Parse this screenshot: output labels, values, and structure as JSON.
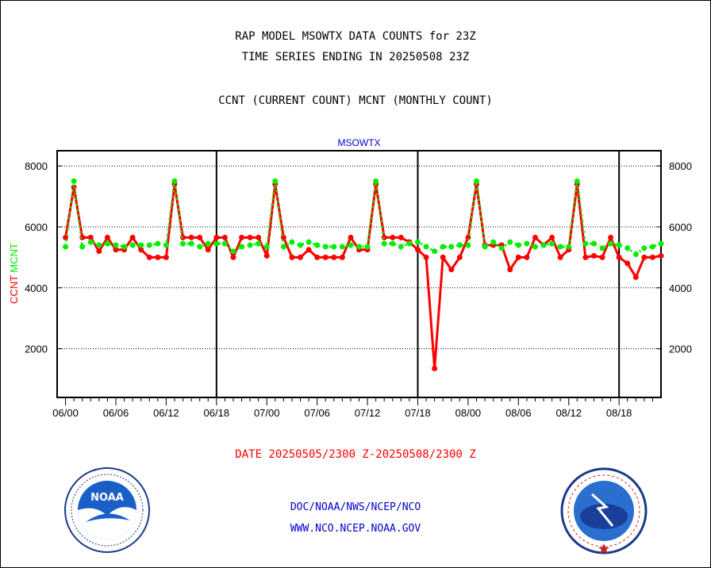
{
  "header": {
    "title1": "RAP MODEL MSOWTX DATA COUNTS for 23Z",
    "title2": "TIME SERIES ENDING IN 20250508 23Z",
    "title3": "CCNT (CURRENT COUNT) MCNT (MONTHLY COUNT)"
  },
  "footer": {
    "date_range": "DATE 20250505/2300 Z-20250508/2300 Z",
    "org_path": "DOC/NOAA/NWS/NCEP/NCO",
    "website": "WWW.NCO.NCEP.NOAA.GOV"
  },
  "logos": {
    "left": {
      "icon": "noaa-logo",
      "text": "NOAA"
    },
    "right": {
      "icon": "national-weather-service-logo"
    }
  },
  "colors": {
    "ccnt": "#ff0000",
    "mcnt": "#00ee00",
    "axis": "#000000",
    "station": "#0000cc"
  },
  "chart_data": {
    "type": "line",
    "title": "MSOWTX",
    "ylabel_ccnt": "CCNT",
    "ylabel_mcnt": "MCNT",
    "xlim": [
      -1,
      71
    ],
    "ylim": [
      400,
      8500
    ],
    "yticks": [
      2000,
      4000,
      6000,
      8000
    ],
    "ytick_labels": [
      "2000",
      "4000",
      "6000",
      "8000"
    ],
    "xticks": [
      0,
      6,
      12,
      18,
      24,
      30,
      36,
      42,
      48,
      54,
      60,
      66
    ],
    "xtick_labels": [
      "06/00",
      "06/06",
      "06/12",
      "06/18",
      "07/00",
      "07/06",
      "07/12",
      "07/18",
      "08/00",
      "08/06",
      "08/12",
      "08/18"
    ],
    "day_dividers": [
      18,
      42,
      66
    ],
    "grid": "horizontal dotted",
    "series": [
      {
        "name": "CCNT",
        "values": [
          5650,
          7300,
          5650,
          5650,
          5200,
          5650,
          5250,
          5250,
          5650,
          5250,
          5000,
          5000,
          5000,
          7400,
          5650,
          5650,
          5650,
          5250,
          5650,
          5650,
          5000,
          5650,
          5650,
          5650,
          5050,
          7400,
          5650,
          5000,
          5000,
          5250,
          5000,
          5000,
          5000,
          5000,
          5650,
          5250,
          5250,
          7400,
          5650,
          5650,
          5650,
          5500,
          5250,
          5000,
          1350,
          5000,
          4600,
          5000,
          5650,
          7400,
          5400,
          5400,
          5400,
          4600,
          5000,
          5000,
          5650,
          5400,
          5650,
          5000,
          5250,
          7400,
          5000,
          5050,
          5000,
          5650,
          5000,
          4800,
          4350,
          5000,
          5000,
          5050
        ]
      },
      {
        "name": "MCNT",
        "values": [
          5350,
          7500,
          5350,
          5500,
          5400,
          5450,
          5400,
          5350,
          5400,
          5400,
          5400,
          5450,
          5400,
          7500,
          5450,
          5450,
          5350,
          5450,
          5450,
          5450,
          5200,
          5350,
          5400,
          5450,
          5350,
          7500,
          5350,
          5500,
          5400,
          5500,
          5400,
          5350,
          5350,
          5350,
          5400,
          5350,
          5350,
          7500,
          5450,
          5450,
          5350,
          5450,
          5500,
          5350,
          5200,
          5350,
          5350,
          5400,
          5400,
          7500,
          5350,
          5500,
          5300,
          5500,
          5400,
          5450,
          5350,
          5400,
          5450,
          5350,
          5350,
          7500,
          5450,
          5450,
          5300,
          5450,
          5400,
          5300,
          5100,
          5300,
          5350,
          5450
        ]
      }
    ]
  }
}
